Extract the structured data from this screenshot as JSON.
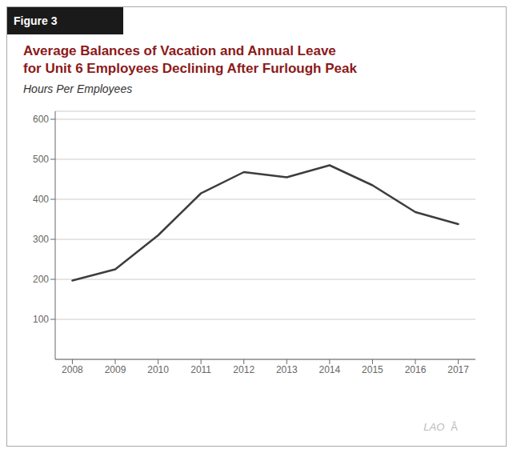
{
  "chart_data": {
    "type": "line",
    "title": [
      "Average Balances of Vacation and Annual Leave",
      "for Unit 6 Employees Declining After Furlough Peak"
    ],
    "subtitle": "Hours Per Employees",
    "annotations": [
      "Figure 3",
      "LAO",
      "Â"
    ],
    "x": [
      2008,
      2009,
      2010,
      2011,
      2012,
      2013,
      2014,
      2015,
      2016,
      2017
    ],
    "values": [
      197,
      225,
      310,
      415,
      468,
      455,
      485,
      435,
      368,
      338
    ],
    "color": "#3d3d3d",
    "xlim": [
      2007.6,
      2017.4
    ],
    "xticks": [
      2008,
      2009,
      2010,
      2011,
      2012,
      2013,
      2014,
      2015,
      2016,
      2017
    ],
    "ylim": [
      0,
      620
    ],
    "yticks": [
      100,
      200,
      300,
      400,
      500,
      600
    ],
    "grid": true
  }
}
